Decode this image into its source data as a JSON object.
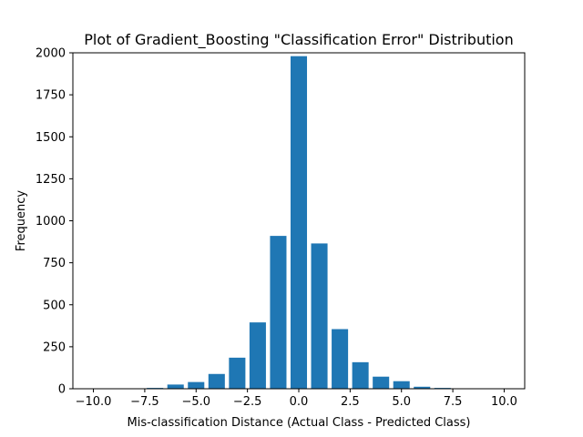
{
  "chart_data": {
    "type": "bar",
    "title": "Plot of Gradient_Boosting \"Classification Error\" Distribution",
    "xlabel": "Mis-classification Distance (Actual Class - Predicted Class)",
    "ylabel": "Frequency",
    "xlim": [
      -11,
      11
    ],
    "ylim": [
      0,
      2000
    ],
    "x_ticks": [
      -10,
      -7.5,
      -5,
      -2.5,
      0,
      2.5,
      5,
      7.5,
      10
    ],
    "x_tick_labels": [
      "−10.0",
      "−7.5",
      "−5.0",
      "−2.5",
      "0.0",
      "2.5",
      "5.0",
      "7.5",
      "10.0"
    ],
    "y_ticks": [
      0,
      250,
      500,
      750,
      1000,
      1250,
      1500,
      1750,
      2000
    ],
    "y_tick_labels": [
      "0",
      "250",
      "500",
      "750",
      "1000",
      "1250",
      "1500",
      "1750",
      "2000"
    ],
    "bar_width": 0.8,
    "x": [
      -10,
      -9,
      -8,
      -7,
      -6,
      -5,
      -4,
      -3,
      -2,
      -1,
      0,
      1,
      2,
      3,
      4,
      5,
      6,
      7,
      8,
      9,
      10
    ],
    "values": [
      0,
      0,
      0,
      5,
      25,
      40,
      88,
      185,
      395,
      910,
      1980,
      865,
      355,
      158,
      72,
      45,
      12,
      5,
      0,
      0,
      0
    ],
    "color": "#1f77b4",
    "grid": false,
    "legend": "none"
  }
}
